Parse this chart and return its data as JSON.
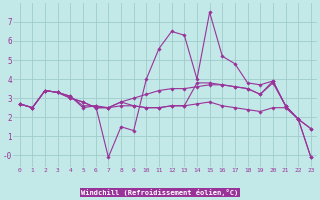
{
  "xlabel": "Windchill (Refroidissement éolien,°C)",
  "bg_color": "#c2e8e8",
  "grid_color": "#a0cccc",
  "line_color": "#993399",
  "text_color": "#993399",
  "xlim": [
    -0.5,
    23.5
  ],
  "ylim": [
    -0.6,
    8.0
  ],
  "xticks": [
    0,
    1,
    2,
    3,
    4,
    5,
    6,
    7,
    8,
    9,
    10,
    11,
    12,
    13,
    14,
    15,
    16,
    17,
    18,
    19,
    20,
    21,
    22,
    23
  ],
  "yticks": [
    0,
    1,
    2,
    3,
    4,
    5,
    6,
    7
  ],
  "ytick_labels": [
    "-0",
    "1",
    "2",
    "3",
    "4",
    "5",
    "6",
    "7"
  ],
  "series": [
    [
      2.7,
      2.5,
      3.4,
      3.3,
      3.1,
      2.5,
      2.6,
      -0.1,
      1.5,
      1.3,
      4.0,
      5.6,
      6.5,
      6.3,
      4.0,
      7.5,
      5.2,
      4.8,
      3.8,
      3.7,
      3.9,
      2.6,
      1.9,
      1.4
    ],
    [
      2.7,
      2.5,
      3.4,
      3.3,
      3.0,
      2.8,
      2.5,
      2.5,
      2.8,
      3.0,
      3.2,
      3.4,
      3.5,
      3.5,
      3.6,
      3.7,
      3.7,
      3.6,
      3.5,
      3.2,
      3.8,
      2.6,
      1.9,
      1.4
    ],
    [
      2.7,
      2.5,
      3.4,
      3.3,
      3.0,
      2.8,
      2.5,
      2.5,
      2.6,
      2.6,
      2.5,
      2.5,
      2.6,
      2.6,
      2.7,
      2.8,
      2.6,
      2.5,
      2.4,
      2.3,
      2.5,
      2.5,
      1.9,
      -0.1
    ],
    [
      2.7,
      2.5,
      3.4,
      3.3,
      3.1,
      2.6,
      2.6,
      2.5,
      2.8,
      2.6,
      2.5,
      2.5,
      2.6,
      2.6,
      3.8,
      3.8,
      3.7,
      3.6,
      3.5,
      3.2,
      3.9,
      2.6,
      1.9,
      -0.1
    ]
  ]
}
